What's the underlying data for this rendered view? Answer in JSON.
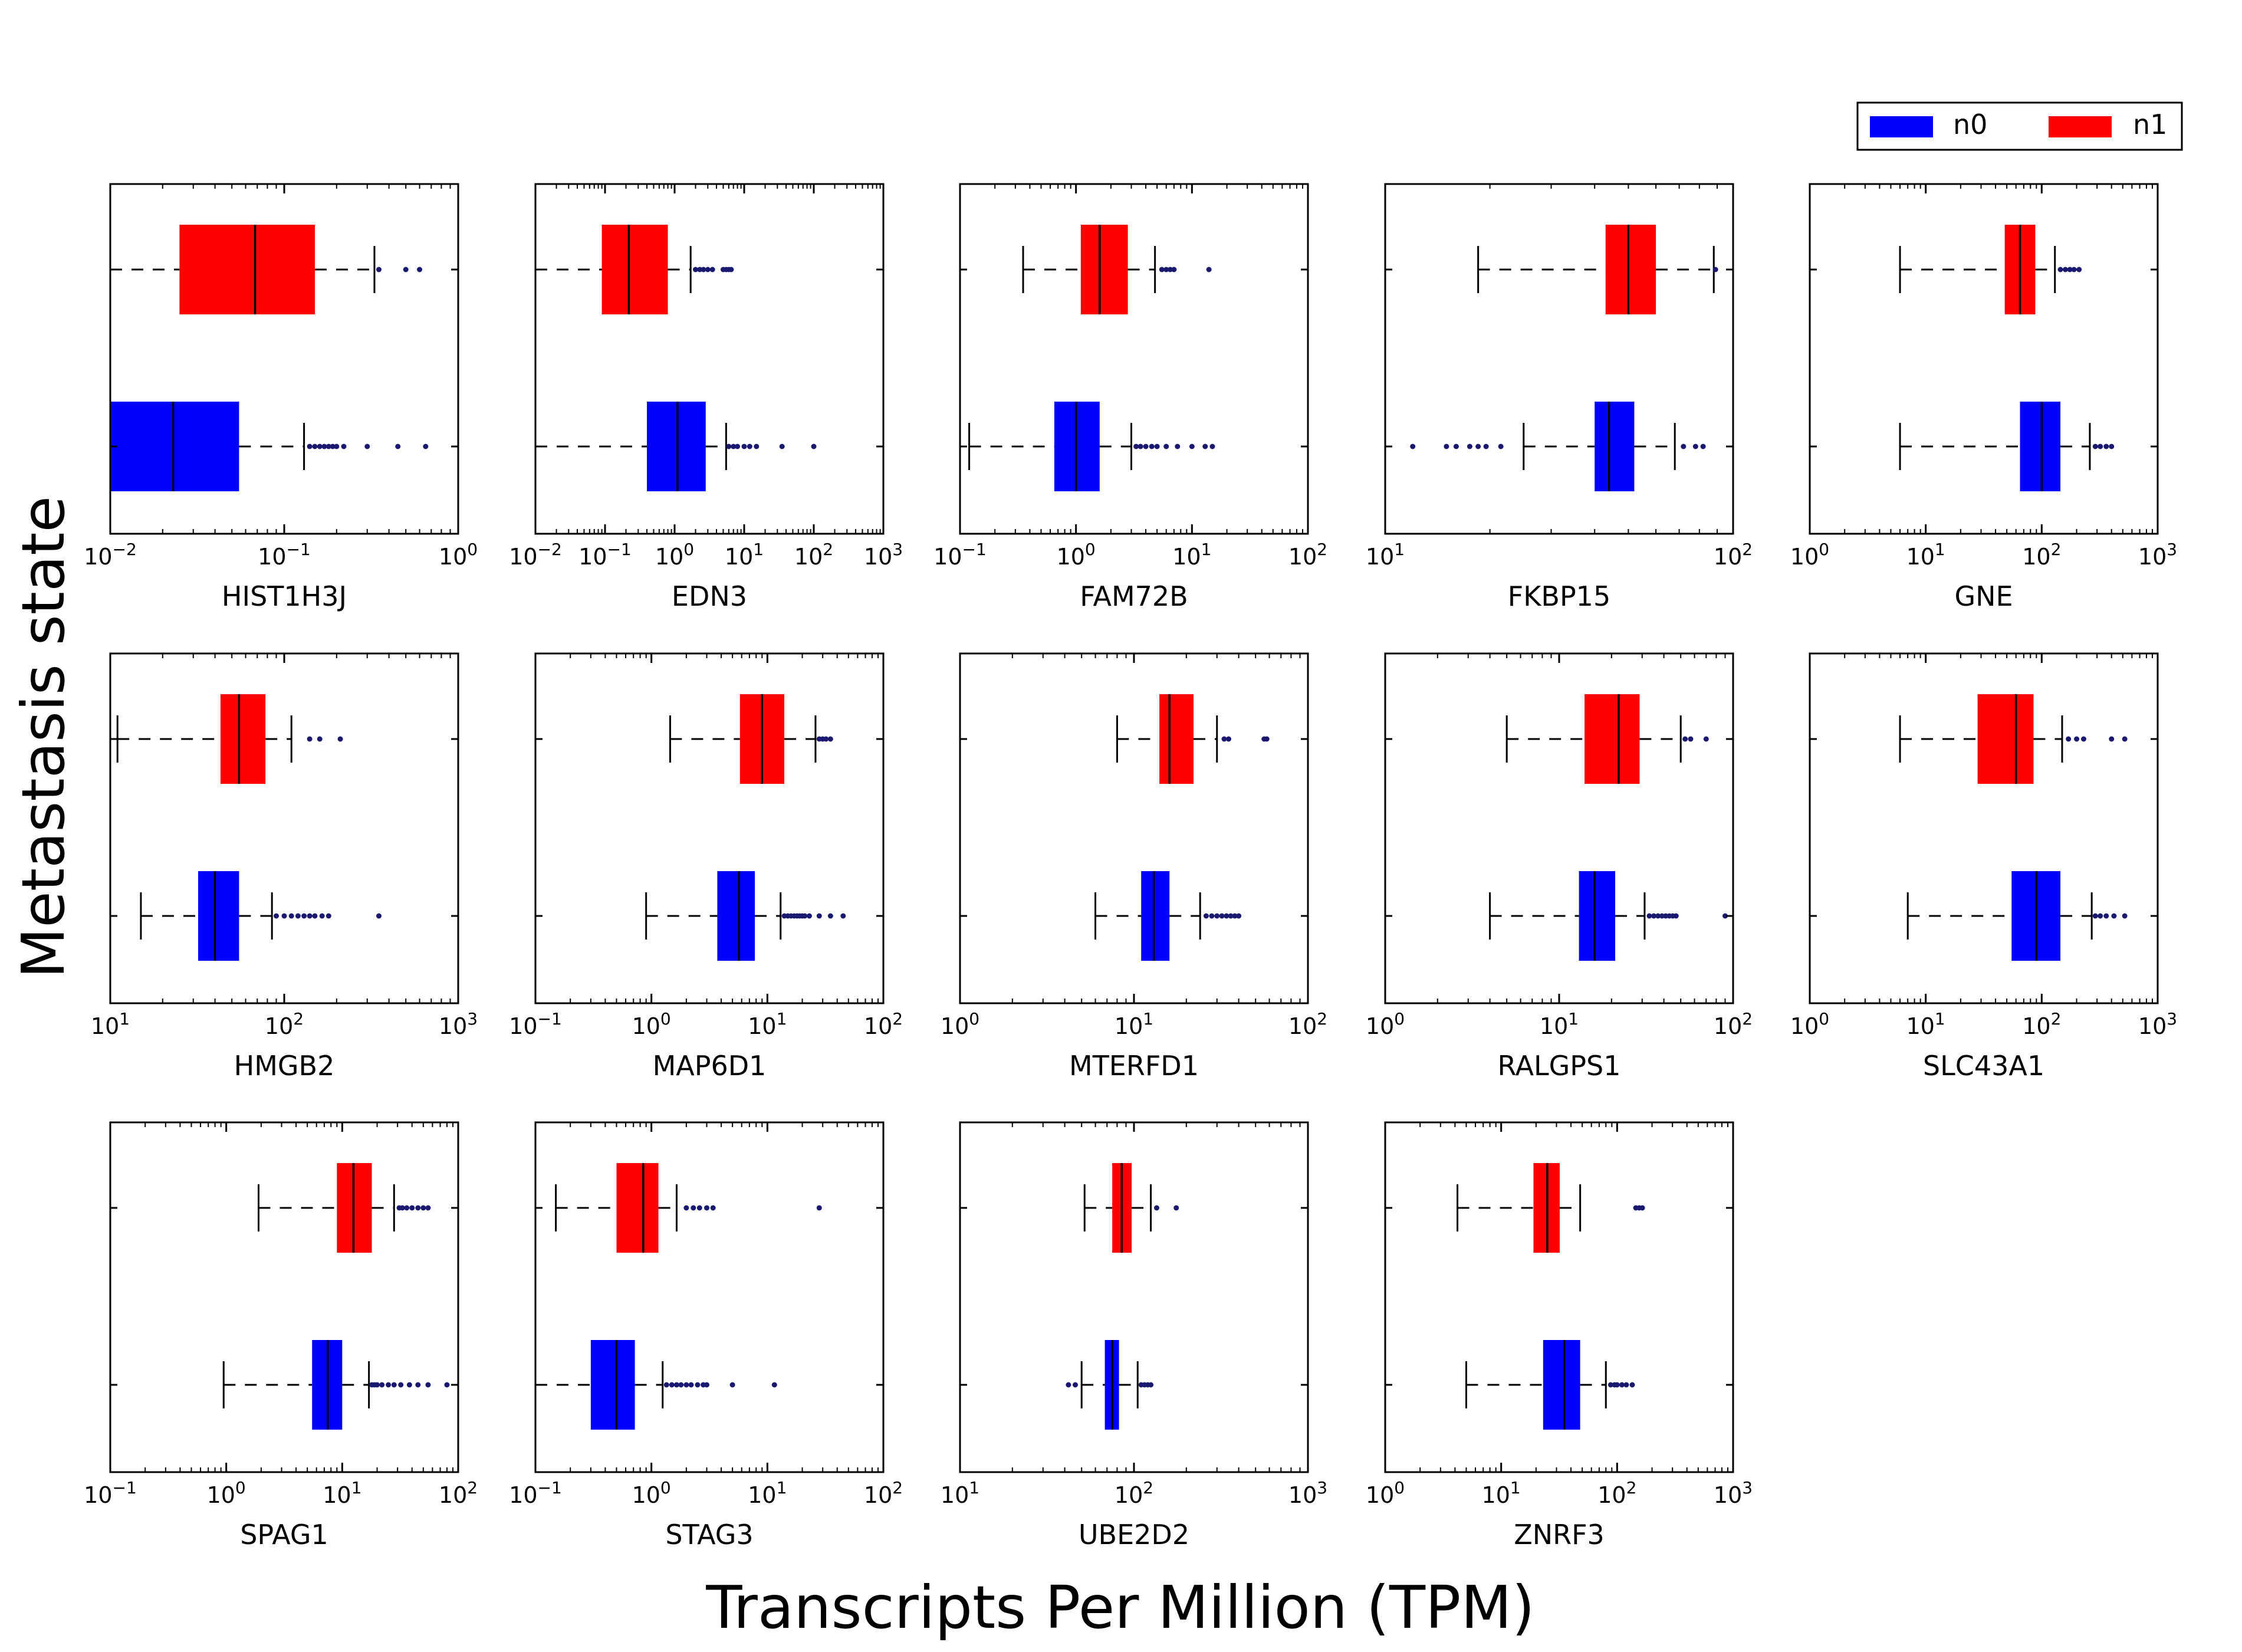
{
  "figure": {
    "xlabel": "Transcripts Per Million (TPM)",
    "ylabel": "Metastasis state"
  },
  "legend": {
    "placement": "top-right",
    "entries": [
      {
        "label": "n0",
        "color": "#0000ff"
      },
      {
        "label": "n1",
        "color": "#ff0000"
      }
    ]
  },
  "colors": {
    "n0": "#0000ff",
    "n1": "#ff0000",
    "median": "#000000",
    "outlier": "#191970"
  },
  "chart_data": [
    {
      "type": "box",
      "gene": "HIST1H3J",
      "log_scale": true,
      "xlim_exp": [
        -2,
        0
      ],
      "series": [
        {
          "name": "n1",
          "whisker_low": 0.01,
          "q1": 0.025,
          "median": 0.068,
          "q3": 0.15,
          "whisker_high": 0.33,
          "outliers": [
            0.35,
            0.5,
            0.6
          ]
        },
        {
          "name": "n0",
          "whisker_low": 0.01,
          "q1": 0.01,
          "median": 0.023,
          "q3": 0.055,
          "whisker_high": 0.13,
          "outliers": [
            0.14,
            0.15,
            0.16,
            0.17,
            0.18,
            0.19,
            0.2,
            0.22,
            0.3,
            0.45,
            0.65
          ]
        }
      ]
    },
    {
      "type": "box",
      "gene": "EDN3",
      "log_scale": true,
      "xlim_exp": [
        -2,
        3
      ],
      "series": [
        {
          "name": "n1",
          "whisker_low": 0.01,
          "q1": 0.09,
          "median": 0.22,
          "q3": 0.8,
          "whisker_high": 1.7,
          "outliers": [
            2.0,
            2.3,
            2.6,
            3.0,
            3.5,
            5.0,
            5.5,
            6.0,
            6.5
          ]
        },
        {
          "name": "n0",
          "whisker_low": 0.01,
          "q1": 0.4,
          "median": 1.1,
          "q3": 2.8,
          "whisker_high": 5.5,
          "outliers": [
            6.0,
            7.0,
            8.0,
            10.0,
            12.0,
            15.0,
            35.0,
            100.0
          ]
        }
      ]
    },
    {
      "type": "box",
      "gene": "FAM72B",
      "log_scale": true,
      "xlim_exp": [
        -1,
        2
      ],
      "series": [
        {
          "name": "n1",
          "whisker_low": 0.35,
          "q1": 1.1,
          "median": 1.6,
          "q3": 2.8,
          "whisker_high": 4.8,
          "outliers": [
            5.5,
            6.0,
            6.5,
            7.0,
            14.0
          ]
        },
        {
          "name": "n0",
          "whisker_low": 0.12,
          "q1": 0.65,
          "median": 1.0,
          "q3": 1.6,
          "whisker_high": 3.0,
          "outliers": [
            3.3,
            3.6,
            4.0,
            4.5,
            5.0,
            6.0,
            7.5,
            10.0,
            13.0,
            15.0
          ]
        }
      ]
    },
    {
      "type": "box",
      "gene": "FKBP15",
      "log_scale": true,
      "xlim_exp": [
        1,
        2
      ],
      "series": [
        {
          "name": "n1",
          "whisker_low": 18.5,
          "q1": 43.0,
          "median": 50.0,
          "q3": 60.0,
          "whisker_high": 88.0,
          "outliers": [
            89.0
          ]
        },
        {
          "name": "n0",
          "whisker_low": 25.0,
          "q1": 40.0,
          "median": 44.0,
          "q3": 52.0,
          "whisker_high": 68.0,
          "outliers": [
            12.0,
            15.0,
            16.0,
            17.5,
            18.5,
            19.5,
            21.5,
            72.0,
            78.0,
            82.0
          ]
        }
      ]
    },
    {
      "type": "box",
      "gene": "GNE",
      "log_scale": true,
      "xlim_exp": [
        0,
        3
      ],
      "series": [
        {
          "name": "n1",
          "whisker_low": 6.0,
          "q1": 48.0,
          "median": 65.0,
          "q3": 88.0,
          "whisker_high": 130.0,
          "outliers": [
            145.0,
            160.0,
            175.0,
            190.0,
            210.0
          ]
        },
        {
          "name": "n0",
          "whisker_low": 6.0,
          "q1": 65.0,
          "median": 100.0,
          "q3": 145.0,
          "whisker_high": 260.0,
          "outliers": [
            290.0,
            320.0,
            360.0,
            400.0
          ]
        }
      ]
    },
    {
      "type": "box",
      "gene": "HMGB2",
      "log_scale": true,
      "xlim_exp": [
        1,
        3
      ],
      "series": [
        {
          "name": "n1",
          "whisker_low": 11.0,
          "q1": 43.0,
          "median": 55.0,
          "q3": 78.0,
          "whisker_high": 110.0,
          "outliers": [
            140.0,
            160.0,
            210.0
          ]
        },
        {
          "name": "n0",
          "whisker_low": 15.0,
          "q1": 32.0,
          "median": 40.0,
          "q3": 55.0,
          "whisker_high": 85.0,
          "outliers": [
            90.0,
            100.0,
            110.0,
            120.0,
            130.0,
            140.0,
            150.0,
            165.0,
            180.0,
            350.0
          ]
        }
      ]
    },
    {
      "type": "box",
      "gene": "MAP6D1",
      "log_scale": true,
      "xlim_exp": [
        -1,
        2
      ],
      "series": [
        {
          "name": "n1",
          "whisker_low": 1.45,
          "q1": 5.8,
          "median": 9.0,
          "q3": 14.0,
          "whisker_high": 26.0,
          "outliers": [
            28.0,
            30.0,
            32.0,
            35.0
          ]
        },
        {
          "name": "n0",
          "whisker_low": 0.9,
          "q1": 3.7,
          "median": 5.7,
          "q3": 7.8,
          "whisker_high": 13.0,
          "outliers": [
            14.0,
            15.0,
            16.0,
            17.0,
            18.0,
            19.0,
            20.0,
            21.0,
            23.0,
            28.0,
            35.0,
            45.0
          ]
        }
      ]
    },
    {
      "type": "box",
      "gene": "MTERFD1",
      "log_scale": true,
      "xlim_exp": [
        0,
        2
      ],
      "series": [
        {
          "name": "n1",
          "whisker_low": 8.0,
          "q1": 14.0,
          "median": 16.0,
          "q3": 22.0,
          "whisker_high": 30.0,
          "outliers": [
            33.0,
            35.0,
            56.0,
            58.0
          ]
        },
        {
          "name": "n0",
          "whisker_low": 6.0,
          "q1": 11.0,
          "median": 13.0,
          "q3": 16.0,
          "whisker_high": 24.0,
          "outliers": [
            26.0,
            28.0,
            30.0,
            32.0,
            34.0,
            36.0,
            38.0,
            40.0
          ]
        }
      ]
    },
    {
      "type": "box",
      "gene": "RALGPS1",
      "log_scale": true,
      "xlim_exp": [
        0,
        2
      ],
      "series": [
        {
          "name": "n1",
          "whisker_low": 5.0,
          "q1": 14.0,
          "median": 22.0,
          "q3": 29.0,
          "whisker_high": 50.0,
          "outliers": [
            53.0,
            57.0,
            70.0
          ]
        },
        {
          "name": "n0",
          "whisker_low": 4.0,
          "q1": 13.0,
          "median": 16.0,
          "q3": 21.0,
          "whisker_high": 31.0,
          "outliers": [
            33.0,
            35.0,
            37.0,
            39.0,
            41.0,
            43.0,
            45.0,
            47.0,
            90.0
          ]
        }
      ]
    },
    {
      "type": "box",
      "gene": "SLC43A1",
      "log_scale": true,
      "xlim_exp": [
        0,
        3
      ],
      "series": [
        {
          "name": "n1",
          "whisker_low": 6.0,
          "q1": 28.0,
          "median": 60.0,
          "q3": 85.0,
          "whisker_high": 150.0,
          "outliers": [
            170.0,
            200.0,
            230.0,
            400.0,
            520.0
          ]
        },
        {
          "name": "n0",
          "whisker_low": 7.0,
          "q1": 55.0,
          "median": 90.0,
          "q3": 145.0,
          "whisker_high": 270.0,
          "outliers": [
            290.0,
            320.0,
            360.0,
            420.0,
            520.0
          ]
        }
      ]
    },
    {
      "type": "box",
      "gene": "SPAG1",
      "log_scale": true,
      "xlim_exp": [
        -1,
        2
      ],
      "series": [
        {
          "name": "n1",
          "whisker_low": 1.9,
          "q1": 9.0,
          "median": 12.5,
          "q3": 18.0,
          "whisker_high": 28.0,
          "outliers": [
            31.0,
            33.0,
            36.0,
            40.0,
            45.0,
            50.0,
            55.0
          ]
        },
        {
          "name": "n0",
          "whisker_low": 0.95,
          "q1": 5.5,
          "median": 7.5,
          "q3": 10.0,
          "whisker_high": 17.0,
          "outliers": [
            18.0,
            19.0,
            20.0,
            22.0,
            25.0,
            28.0,
            32.0,
            38.0,
            45.0,
            55.0,
            80.0
          ]
        }
      ]
    },
    {
      "type": "box",
      "gene": "STAG3",
      "log_scale": true,
      "xlim_exp": [
        -1,
        2
      ],
      "series": [
        {
          "name": "n1",
          "whisker_low": 0.15,
          "q1": 0.5,
          "median": 0.85,
          "q3": 1.15,
          "whisker_high": 1.65,
          "outliers": [
            2.0,
            2.3,
            2.6,
            3.0,
            3.4,
            28.0
          ]
        },
        {
          "name": "n0",
          "whisker_low": 0.1,
          "q1": 0.3,
          "median": 0.5,
          "q3": 0.72,
          "whisker_high": 1.25,
          "outliers": [
            1.35,
            1.5,
            1.65,
            1.8,
            2.0,
            2.2,
            2.5,
            2.8,
            3.0,
            5.0,
            11.5
          ]
        }
      ]
    },
    {
      "type": "box",
      "gene": "UBE2D2",
      "log_scale": true,
      "xlim_exp": [
        1,
        3
      ],
      "series": [
        {
          "name": "n1",
          "whisker_low": 52.0,
          "q1": 75.0,
          "median": 85.0,
          "q3": 97.0,
          "whisker_high": 125.0,
          "outliers": [
            135.0,
            175.0
          ]
        },
        {
          "name": "n0",
          "whisker_low": 50.0,
          "q1": 68.0,
          "median": 75.0,
          "q3": 82.0,
          "whisker_high": 105.0,
          "outliers": [
            42.0,
            46.0,
            110.0,
            115.0,
            120.0,
            125.0
          ]
        }
      ]
    },
    {
      "type": "box",
      "gene": "ZNRF3",
      "log_scale": true,
      "xlim_exp": [
        0,
        3
      ],
      "series": [
        {
          "name": "n1",
          "whisker_low": 4.2,
          "q1": 19.0,
          "median": 25.0,
          "q3": 32.0,
          "whisker_high": 48.0,
          "outliers": [
            145.0,
            155.0,
            165.0
          ]
        },
        {
          "name": "n0",
          "whisker_low": 5.0,
          "q1": 23.0,
          "median": 35.0,
          "q3": 48.0,
          "whisker_high": 80.0,
          "outliers": [
            88.0,
            95.0,
            100.0,
            110.0,
            120.0,
            135.0
          ]
        }
      ]
    }
  ]
}
